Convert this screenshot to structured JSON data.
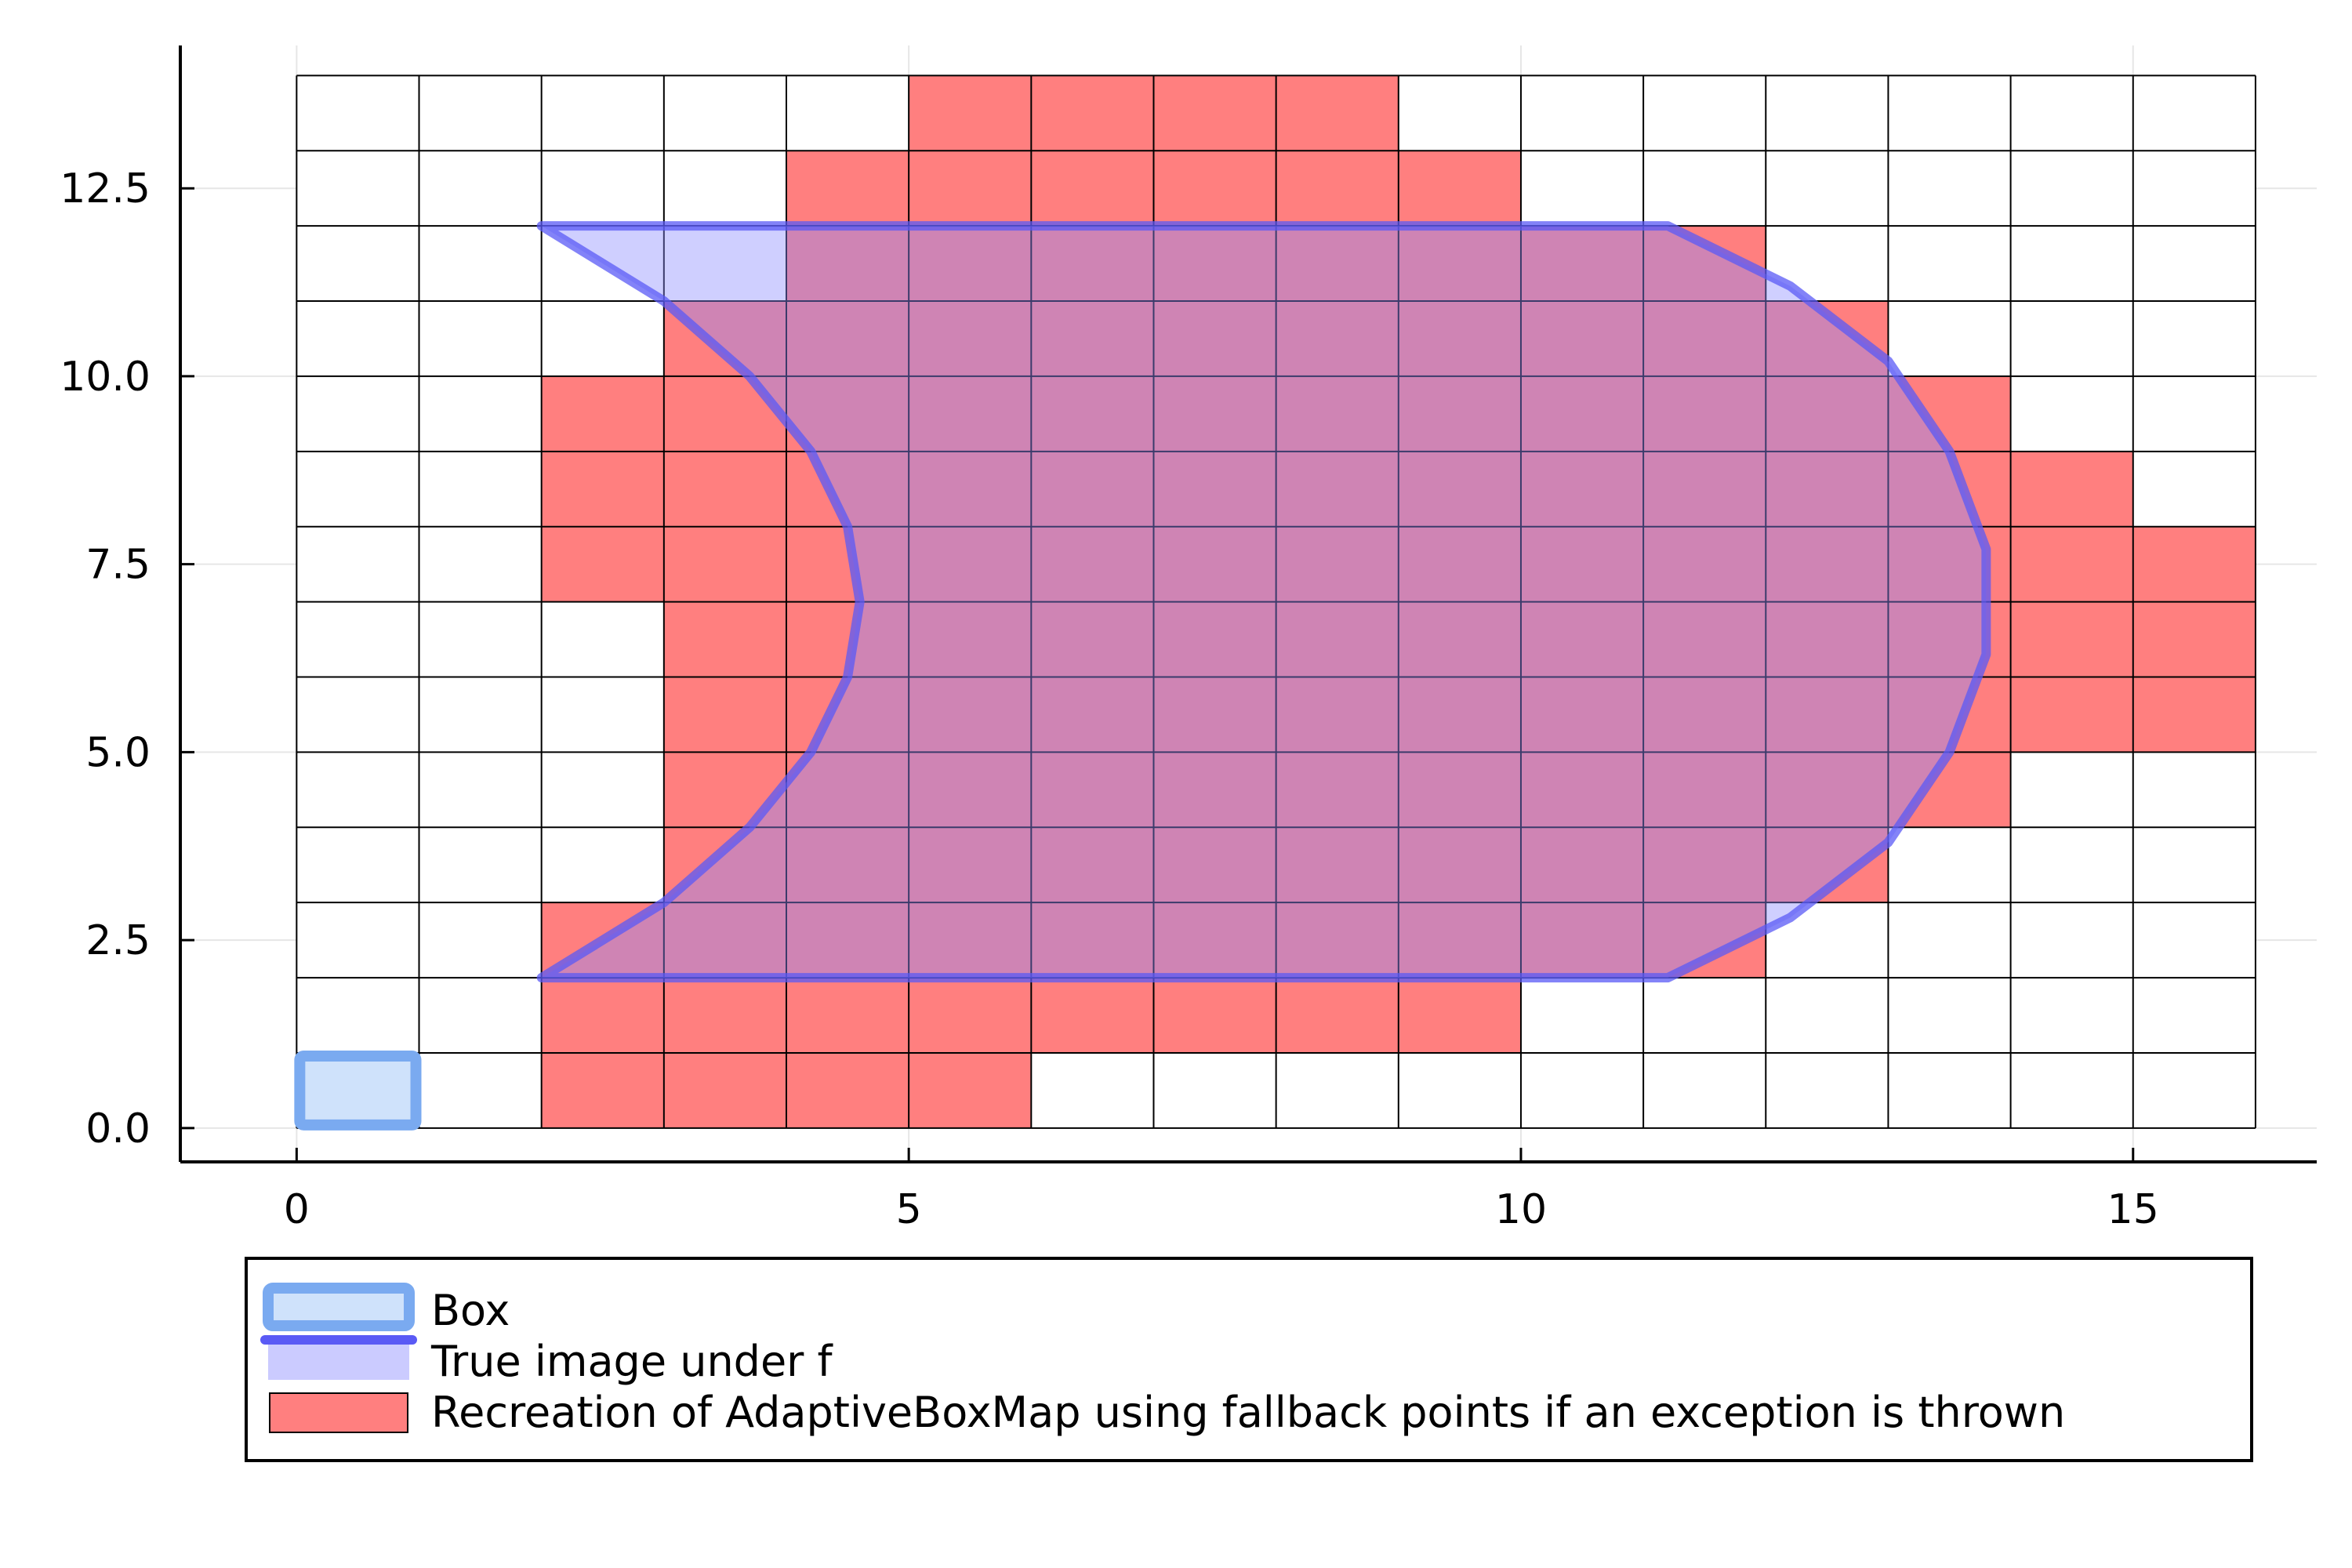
{
  "chart_data": {
    "type": "area",
    "title": "",
    "xlabel": "",
    "ylabel": "",
    "xlim": [
      -0.95,
      16.5
    ],
    "ylim": [
      -0.45,
      14.4
    ],
    "xticks": [
      0,
      5,
      10,
      15
    ],
    "xtick_labels": [
      "0",
      "5",
      "10",
      "15"
    ],
    "yticks": [
      0,
      2.5,
      5,
      7.5,
      10,
      12.5
    ],
    "ytick_labels": [
      "0.0",
      "2.5",
      "5.0",
      "7.5",
      "10.0",
      "12.5"
    ],
    "grid": true,
    "legend_position": "outer-bottom",
    "grid_boxes": {
      "x_range": [
        0,
        16
      ],
      "y_range": [
        0,
        14
      ],
      "nx": 16,
      "ny": 14
    },
    "series": [
      {
        "name": "Box",
        "kind": "rectangle",
        "x": [
          0,
          1
        ],
        "y": [
          0,
          1
        ],
        "fill_color": "#cfe2fb",
        "stroke_color": "#7aaaf0"
      },
      {
        "name": "True image under f",
        "kind": "region",
        "fill_color": "#8c8cff",
        "stroke_color": "#5a5af5",
        "outline": [
          [
            2,
            2
          ],
          [
            11.2,
            2
          ],
          [
            12.2,
            2.8
          ],
          [
            13,
            3.8
          ],
          [
            13.5,
            5
          ],
          [
            13.8,
            6.3
          ],
          [
            13.8,
            7.7
          ],
          [
            13.5,
            9
          ],
          [
            13,
            10.2
          ],
          [
            12.2,
            11.2
          ],
          [
            11.2,
            12
          ],
          [
            2,
            12
          ],
          [
            3,
            11
          ],
          [
            3.7,
            10
          ],
          [
            4.2,
            9
          ],
          [
            4.5,
            8
          ],
          [
            4.6,
            7
          ],
          [
            4.5,
            6
          ],
          [
            4.2,
            5
          ],
          [
            3.7,
            4
          ],
          [
            3,
            3
          ],
          [
            2,
            2
          ]
        ]
      },
      {
        "name": "Recreation of AdaptiveBoxMap using fallback points if an exception is thrown",
        "kind": "boxes",
        "fill_color": "#ff7f7f",
        "row_ranges": [
          [
            [
              2,
              6
            ]
          ],
          [
            [
              2,
              10
            ]
          ],
          [
            [
              2,
              12
            ]
          ],
          [
            [
              3,
              13
            ]
          ],
          [
            [
              3,
              14
            ]
          ],
          [
            [
              3,
              16
            ]
          ],
          [
            [
              3,
              16
            ]
          ],
          [
            [
              2,
              16
            ]
          ],
          [
            [
              2,
              15
            ]
          ],
          [
            [
              2,
              14
            ]
          ],
          [
            [
              3,
              13
            ]
          ],
          [
            [
              4,
              12
            ]
          ],
          [
            [
              4,
              10
            ]
          ],
          [
            [
              5,
              9
            ]
          ]
        ]
      }
    ]
  },
  "legend": {
    "entries": [
      {
        "label": "Box"
      },
      {
        "label": "True image under f"
      },
      {
        "label": "Recreation of AdaptiveBoxMap using fallback points if an exception is thrown"
      }
    ]
  }
}
